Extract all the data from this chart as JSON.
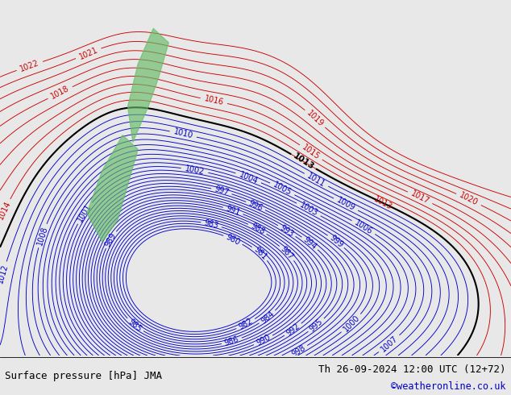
{
  "title_left": "Surface pressure [hPa] JMA",
  "title_right": "Th 26-09-2024 12:00 UTC (12+72)",
  "copyright": "©weatheronline.co.uk",
  "bg_color": "#e8e8e8",
  "blue_color": "#0000cc",
  "red_color": "#cc0000",
  "black_color": "#000000",
  "green_color": "#66bb66",
  "label_fontsize": 7.0,
  "footer_fontsize": 9.0,
  "copyright_fontsize": 8.5,
  "figsize": [
    6.34,
    4.9
  ],
  "dpi": 100
}
